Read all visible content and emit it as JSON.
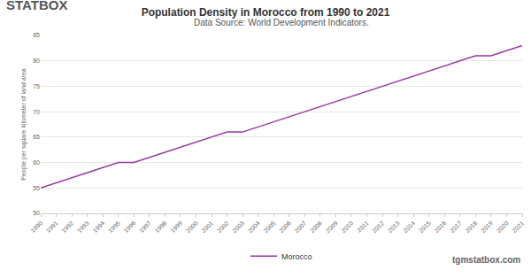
{
  "chart_data": {
    "type": "line",
    "title": "Population Density in Morocco from 1990 to 2021",
    "subtitle": "Data Source: World Development Indicators.",
    "y_label": "People per square kilometer of land area",
    "annotations": [
      {
        "text": "STATBOX"
      },
      {
        "text": "tgmstatbox.com"
      }
    ],
    "x": [
      1990,
      1991,
      1992,
      1993,
      1994,
      1995,
      1996,
      1997,
      1998,
      1999,
      2000,
      2001,
      2002,
      2003,
      2004,
      2005,
      2006,
      2007,
      2008,
      2009,
      2010,
      2011,
      2012,
      2013,
      2014,
      2015,
      2016,
      2017,
      2018,
      2019,
      2020,
      2021
    ],
    "series": [
      {
        "name": "Morocco",
        "color": "#93389f",
        "values": [
          55,
          56,
          57,
          58,
          59,
          60,
          60,
          61,
          62,
          63,
          64,
          65,
          66,
          66,
          67,
          68,
          69,
          70,
          71,
          72,
          73,
          74,
          75,
          76,
          77,
          78,
          79,
          80,
          81,
          81,
          82,
          83
        ]
      }
    ],
    "xlim": [
      1990,
      2021
    ],
    "xticks": [
      1990,
      1991,
      1992,
      1993,
      1994,
      1995,
      1996,
      1997,
      1998,
      1999,
      2000,
      2001,
      2002,
      2003,
      2004,
      2005,
      2006,
      2007,
      2008,
      2009,
      2010,
      2011,
      2012,
      2013,
      2014,
      2015,
      2016,
      2017,
      2018,
      2019,
      2020,
      2021
    ],
    "ylim": [
      50,
      85
    ],
    "yticks": [
      50,
      55,
      60,
      65,
      70,
      75,
      80,
      85
    ],
    "grid": true,
    "legend": "bottom"
  }
}
